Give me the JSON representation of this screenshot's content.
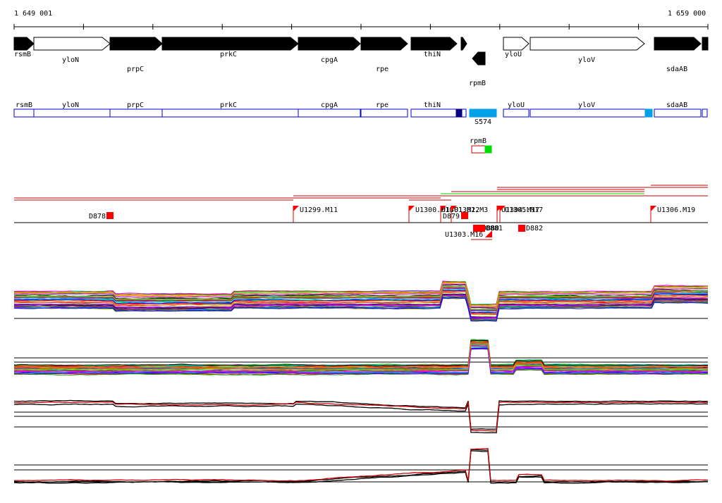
{
  "ruler": {
    "start_label": "1 649 001",
    "end_label": "1 659 000"
  },
  "genes_top": [
    {
      "name": "rsmB",
      "strand": "+",
      "style": "black",
      "row": 0
    },
    {
      "name": "yloN",
      "strand": "+",
      "style": "white",
      "row": 1
    },
    {
      "name": "prpC",
      "strand": "+",
      "style": "black",
      "row": 2
    },
    {
      "name": "prkC",
      "strand": "+",
      "style": "black",
      "row": 0
    },
    {
      "name": "cpgA",
      "strand": "+",
      "style": "black",
      "row": 1
    },
    {
      "name": "rpe",
      "strand": "+",
      "style": "black",
      "row": 2
    },
    {
      "name": "thiN",
      "strand": "+",
      "style": "black",
      "row": 0
    },
    {
      "name": "",
      "strand": "+",
      "style": "black",
      "row": 0
    },
    {
      "name": "rpmB",
      "strand": "-",
      "style": "black",
      "row": 3
    },
    {
      "name": "yloU",
      "strand": "+",
      "style": "white",
      "row": 0
    },
    {
      "name": "yloV",
      "strand": "+",
      "style": "white",
      "row": 1
    },
    {
      "name": "sdaAB",
      "strand": "+",
      "style": "black",
      "row": 2
    },
    {
      "name": "",
      "strand": "+",
      "style": "black",
      "row": 0
    }
  ],
  "genes_boxes": [
    {
      "name": "rsmB"
    },
    {
      "name": "yloN"
    },
    {
      "name": "prpC"
    },
    {
      "name": "prkC"
    },
    {
      "name": "cpgA"
    },
    {
      "name": "rpe"
    },
    {
      "name": "thiN"
    },
    {
      "name": "yloU"
    },
    {
      "name": "yloV"
    },
    {
      "name": "sdaAB"
    },
    {
      "name": ""
    }
  ],
  "small_rna": {
    "name": "S574",
    "color": "#00a0e8"
  },
  "rpmB_feature": {
    "name": "rpmB",
    "color": "#00dd00"
  },
  "markers": [
    {
      "name": "D878",
      "type": "box"
    },
    {
      "name": "U1299.M11",
      "type": "flag"
    },
    {
      "name": "U1300.M10",
      "type": "flag"
    },
    {
      "name": "U1301.M12",
      "type": "flag"
    },
    {
      "name": "U1302.M3",
      "type": "flag"
    },
    {
      "name": "D879",
      "type": "box"
    },
    {
      "name": "U1303.M16",
      "type": "flag"
    },
    {
      "name": "D880",
      "type": "box"
    },
    {
      "name": "D881",
      "type": "box"
    },
    {
      "name": "U1304.M17",
      "type": "flag"
    },
    {
      "name": "U1305.M17",
      "type": "flag"
    },
    {
      "name": "D882",
      "type": "box"
    },
    {
      "name": "U1306.M19",
      "type": "flag"
    }
  ],
  "colors": {
    "gene_black": "#000000",
    "gene_box_blue": "#0000cc",
    "gene_box_navy": "#000080",
    "marker_red": "#ff0000",
    "line_red": "#cc0000",
    "line_green": "#00cc00"
  }
}
